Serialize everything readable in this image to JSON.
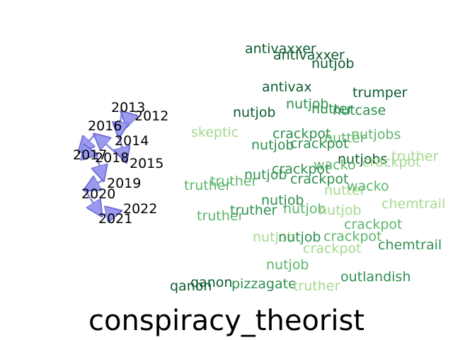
{
  "chart_data": {
    "type": "scatter",
    "title": "conspiracy_theorist",
    "grid": false,
    "axes": "off",
    "colors": {
      "arrow_fill": "#9a9aee",
      "arrow_stroke": "#6c6cd8",
      "shade_dark": "#0b5c2e",
      "shade_mid": "#2e8f4e",
      "shade_light": "#5bb56a",
      "shade_pale": "#a6d88f"
    },
    "years": [
      "2012",
      "2013",
      "2014",
      "2015",
      "2016",
      "2017",
      "2018",
      "2019",
      "2020",
      "2021",
      "2022"
    ],
    "words": [
      {
        "text": "antivaxxer",
        "shade": "dark"
      },
      {
        "text": "antivaxxer",
        "shade": "dark"
      },
      {
        "text": "nutjob",
        "shade": "dark"
      },
      {
        "text": "antivax",
        "shade": "dark"
      },
      {
        "text": "trumper",
        "shade": "dark"
      },
      {
        "text": "nutjob",
        "shade": "dark"
      },
      {
        "text": "nutjob",
        "shade": "mid"
      },
      {
        "text": "nutter",
        "shade": "mid"
      },
      {
        "text": "nutcase",
        "shade": "mid"
      },
      {
        "text": "skeptic",
        "shade": "pale"
      },
      {
        "text": "crackpot",
        "shade": "mid"
      },
      {
        "text": "nutter",
        "shade": "light"
      },
      {
        "text": "nutjobs",
        "shade": "light"
      },
      {
        "text": "nutjob",
        "shade": "mid"
      },
      {
        "text": "crackpot",
        "shade": "mid"
      },
      {
        "text": "truther",
        "shade": "pale"
      },
      {
        "text": "nutjobs",
        "shade": "dark"
      },
      {
        "text": "crackpot",
        "shade": "pale"
      },
      {
        "text": "wacko",
        "shade": "light"
      },
      {
        "text": "crackpot",
        "shade": "mid"
      },
      {
        "text": "nutjob",
        "shade": "mid"
      },
      {
        "text": "crackpot",
        "shade": "mid"
      },
      {
        "text": "truther",
        "shade": "light"
      },
      {
        "text": "truther",
        "shade": "light"
      },
      {
        "text": "nutter",
        "shade": "pale"
      },
      {
        "text": "wacko",
        "shade": "light"
      },
      {
        "text": "nutjob",
        "shade": "mid"
      },
      {
        "text": "chemtrail",
        "shade": "pale"
      },
      {
        "text": "nutjob",
        "shade": "light"
      },
      {
        "text": "nutjob",
        "shade": "pale"
      },
      {
        "text": "truther",
        "shade": "mid"
      },
      {
        "text": "truther",
        "shade": "light"
      },
      {
        "text": "crackpot",
        "shade": "light"
      },
      {
        "text": "nutjob",
        "shade": "pale"
      },
      {
        "text": "nutjob",
        "shade": "mid"
      },
      {
        "text": "crackpot",
        "shade": "light"
      },
      {
        "text": "chemtrail",
        "shade": "mid"
      },
      {
        "text": "crackpot",
        "shade": "pale"
      },
      {
        "text": "nutjob",
        "shade": "light"
      },
      {
        "text": "outlandish",
        "shade": "mid"
      },
      {
        "text": "qanon",
        "shade": "dark"
      },
      {
        "text": "qanon",
        "shade": "dark"
      },
      {
        "text": "pizzagate",
        "shade": "mid"
      },
      {
        "text": "truther",
        "shade": "pale"
      }
    ]
  }
}
